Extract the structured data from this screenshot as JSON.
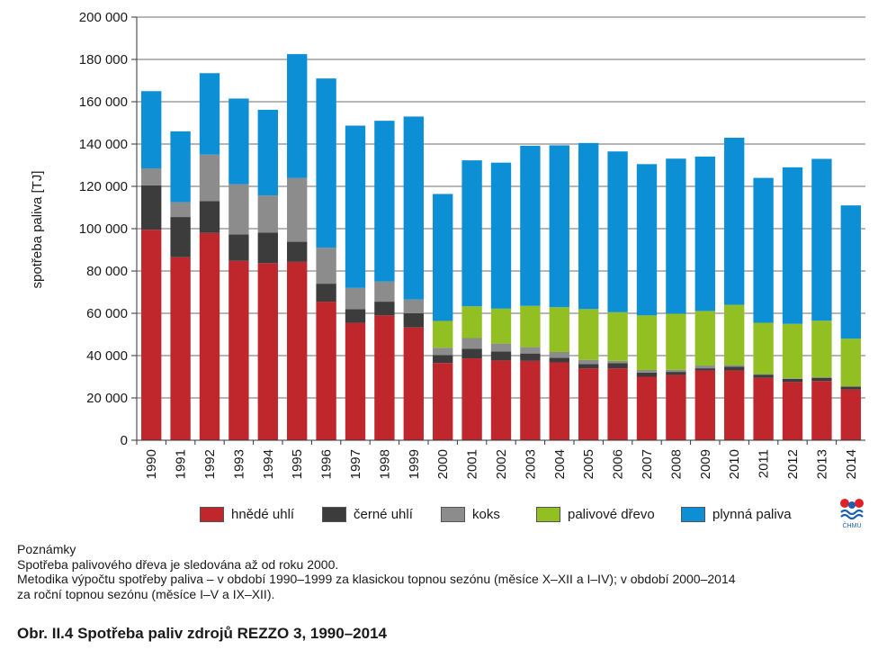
{
  "chart_data": {
    "type": "bar",
    "stacked": true,
    "ylabel": "spotřeba paliva [TJ]",
    "ylim": [
      0,
      200000
    ],
    "yticks": [
      "0",
      "20 000",
      "40 000",
      "60 000",
      "80 000",
      "100 000",
      "120 000",
      "140 000",
      "160 000",
      "180 000",
      "200 000"
    ],
    "grid": true,
    "legend_position": "bottom",
    "categories": [
      "1990",
      "1991",
      "1992",
      "1993",
      "1994",
      "1995",
      "1996",
      "1997",
      "1998",
      "1999",
      "2000",
      "2001",
      "2002",
      "2003",
      "2004",
      "2005",
      "2006",
      "2007",
      "2008",
      "2009",
      "2010",
      "2011",
      "2012",
      "2013",
      "2014"
    ],
    "series": [
      {
        "name": "hnědé uhlí",
        "color": "#c0272d",
        "values": [
          99500,
          86500,
          98000,
          84800,
          83700,
          84300,
          65500,
          55500,
          59000,
          53300,
          36500,
          38700,
          37700,
          37500,
          36800,
          34000,
          34000,
          30000,
          30800,
          33000,
          33000,
          29500,
          27500,
          28000,
          24000
        ]
      },
      {
        "name": "černé uhlí",
        "color": "#3c3c3c",
        "values": [
          21000,
          19000,
          15000,
          12500,
          14500,
          9500,
          8500,
          6500,
          6500,
          6700,
          3700,
          4600,
          4300,
          3500,
          2200,
          2000,
          2500,
          2000,
          1500,
          1000,
          1700,
          1500,
          1500,
          1500,
          1300
        ]
      },
      {
        "name": "koks",
        "color": "#8c8c8c",
        "values": [
          8000,
          7000,
          22000,
          23700,
          17500,
          30200,
          17000,
          10000,
          9500,
          6500,
          3500,
          5000,
          3700,
          3000,
          2700,
          2000,
          1000,
          1200,
          1000,
          1300,
          800,
          300,
          300,
          300,
          200
        ]
      },
      {
        "name": "palivové dřevo",
        "color": "#92c022",
        "values": [
          0,
          0,
          0,
          0,
          0,
          0,
          0,
          0,
          0,
          0,
          12700,
          15000,
          16500,
          19500,
          21200,
          24000,
          23000,
          25800,
          26500,
          25800,
          28500,
          24200,
          25700,
          26700,
          22500
        ]
      },
      {
        "name": "plynná paliva",
        "color": "#0d8fd5",
        "values": [
          36500,
          33500,
          38500,
          40500,
          40500,
          58500,
          80000,
          76700,
          76000,
          86500,
          60000,
          69000,
          69000,
          75700,
          76500,
          78500,
          76000,
          71500,
          73300,
          73000,
          79000,
          68500,
          74000,
          76500,
          63000
        ]
      }
    ]
  },
  "logo": {
    "text": "ČHMÚ"
  },
  "notes": {
    "heading": "Poznámky",
    "line1": "Spotřeba palivového dřeva je sledována až od roku 2000.",
    "line2": "Metodika výpočtu spotřeby paliva – v období 1990–1999 za klasickou topnou sezónu (měsíce X–XII a I–IV); v období 2000–2014",
    "line3": "za roční topnou sezónu (měsíce I–V a IX–XII)."
  },
  "caption": "Obr. II.4  Spotřeba paliv zdrojů REZZO 3, 1990–2014"
}
